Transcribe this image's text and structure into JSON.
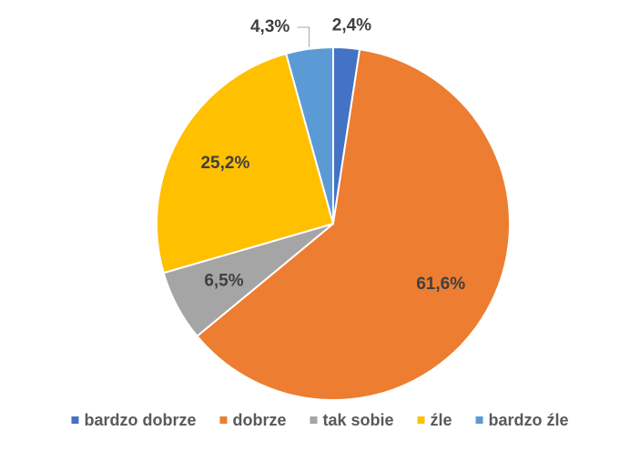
{
  "chart_data": {
    "type": "pie",
    "categories": [
      "bardzo dobrze",
      "dobrze",
      "tak sobie",
      "źle",
      "bardzo źle"
    ],
    "values": [
      2.4,
      61.6,
      6.5,
      25.2,
      4.3
    ],
    "value_labels": [
      "2,4%",
      "61,6%",
      "6,5%",
      "25,2%",
      "4,3%"
    ],
    "colors": [
      "#4472c4",
      "#ed7d31",
      "#a5a5a5",
      "#ffc000",
      "#5b9bd5"
    ],
    "legend": "bottom"
  }
}
